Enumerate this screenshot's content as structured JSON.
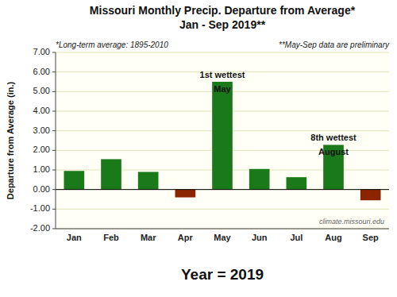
{
  "chart_data": {
    "type": "bar",
    "title": [
      "Missouri Monthly Precip. Departure from Average*",
      "Jan - Sep 2019**"
    ],
    "subtitle": [
      "*Long-term average: 1895-2010",
      "**May-Sep data are preliminary"
    ],
    "x_label": "Year = 2019",
    "y_label": "Departure from Average (in.)",
    "watermark": "climate.missouri.edu",
    "categories": [
      "Jan",
      "Feb",
      "Mar",
      "Apr",
      "May",
      "Jun",
      "Jul",
      "Aug",
      "Sep"
    ],
    "values": [
      0.95,
      1.55,
      0.9,
      -0.4,
      5.5,
      1.05,
      0.63,
      2.28,
      -0.55
    ],
    "colors": [
      "#1a7a1a",
      "#1a7a1a",
      "#1a7a1a",
      "#8b2500",
      "#1a7a1a",
      "#1a7a1a",
      "#1a7a1a",
      "#1a7a1a",
      "#8b2500"
    ],
    "ylim": [
      -2.0,
      7.0
    ],
    "yticks": [
      {
        "value": -2.0,
        "label": "-2.00"
      },
      {
        "value": -1.0,
        "label": "-1.00"
      },
      {
        "value": 0.0,
        "label": "0.00"
      },
      {
        "value": 1.0,
        "label": "1.00"
      },
      {
        "value": 2.0,
        "label": "2.00"
      },
      {
        "value": 3.0,
        "label": "3.00"
      },
      {
        "value": 4.0,
        "label": "4.00"
      },
      {
        "value": 5.0,
        "label": "5.00"
      },
      {
        "value": 6.0,
        "label": "6.00"
      },
      {
        "value": 7.0,
        "label": "7.00"
      }
    ],
    "grid": true,
    "annotations": [
      {
        "category": "May",
        "text": "1st wettest"
      },
      {
        "category": "May",
        "text": "May"
      },
      {
        "category": "Aug",
        "text": "8th wettest"
      },
      {
        "category": "Aug",
        "text": "August"
      }
    ]
  }
}
